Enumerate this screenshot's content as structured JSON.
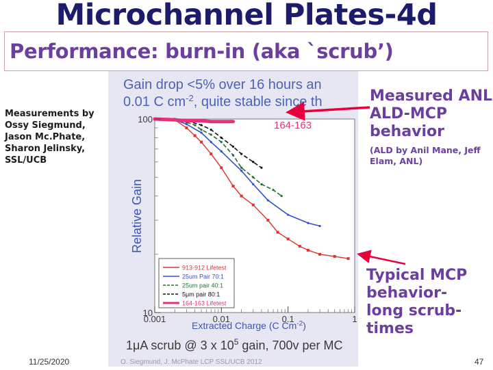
{
  "slide": {
    "title": "Microchannel Plates-4d",
    "subtitle": "Performance: burn-in (aka `scrub’)",
    "credits": [
      "Measurements by",
      "Ossy Siegmund,",
      "Jason Mc.Phate,",
      "Sharon Jelinsky,",
      "SSL/UCB"
    ],
    "date": "11/25/2020",
    "page": "47",
    "annotation_top": {
      "lines": [
        "Measured ANL",
        "ALD-MCP",
        "behavior"
      ],
      "detail": "(ALD by Anil Mane, Jeff Elam, ANL)"
    },
    "annotation_bottom": {
      "lines": [
        "Typical MCP",
        "behavior-",
        "long scrub-",
        "times"
      ]
    },
    "colors": {
      "title": "#1c1c6a",
      "accent": "#6b3fa0",
      "arrow": "#e8003c"
    }
  },
  "chart_data": {
    "type": "scatter",
    "header_line1": "Gain drop <5% over 16 hours an",
    "header_line2_pre": "0.01 C cm",
    "header_line2_sup": "-2",
    "header_line2_post": ", quite stable since th",
    "ylabel": "Relative Gain",
    "xlabel": "Extracted Charge (C Cm",
    "xlabel_sup": "-2",
    "xlabel_post": ")",
    "footnote_pre": "1μA scrub @ 3 x 10",
    "footnote_sup": "5",
    "footnote_post": " gain, 700v per MC",
    "credit_line": "O. Siegmund, J. McPhate LCP SSL/UCB 2012 ",
    "inline_label": "164-163",
    "xscale": "log",
    "xlim": [
      0.001,
      1
    ],
    "ylim": [
      10,
      100
    ],
    "x_ticks": [
      {
        "value": 0.001,
        "label": "0.001"
      },
      {
        "value": 0.01,
        "label": "0.01"
      },
      {
        "value": 0.1,
        "label": "0.1"
      },
      {
        "value": 1,
        "label": "1"
      }
    ],
    "y_ticks": [
      {
        "value": 100,
        "label": "100"
      },
      {
        "value": 10,
        "label": "10"
      }
    ],
    "legend_position": "bottom-left",
    "series": [
      {
        "name": "913-912 Lifetest",
        "color": "#e03030",
        "style": "markers",
        "points": [
          [
            0.001,
            100
          ],
          [
            0.002,
            99
          ],
          [
            0.003,
            90
          ],
          [
            0.004,
            82
          ],
          [
            0.005,
            76
          ],
          [
            0.007,
            66
          ],
          [
            0.01,
            56
          ],
          [
            0.015,
            45
          ],
          [
            0.02,
            40
          ],
          [
            0.03,
            36
          ],
          [
            0.05,
            30
          ],
          [
            0.07,
            26
          ],
          [
            0.1,
            24
          ],
          [
            0.15,
            22
          ],
          [
            0.2,
            21
          ],
          [
            0.3,
            20
          ],
          [
            0.5,
            19.5
          ],
          [
            0.8,
            19
          ]
        ]
      },
      {
        "name": "25um Pair 70:1",
        "color": "#3050c8",
        "style": "line",
        "points": [
          [
            0.001,
            100
          ],
          [
            0.002,
            99
          ],
          [
            0.003,
            94
          ],
          [
            0.005,
            85
          ],
          [
            0.007,
            76
          ],
          [
            0.01,
            68
          ],
          [
            0.02,
            54
          ],
          [
            0.03,
            46
          ],
          [
            0.05,
            38
          ],
          [
            0.1,
            32
          ],
          [
            0.2,
            29
          ],
          [
            0.3,
            28
          ]
        ]
      },
      {
        "name": "25um pair 40:1",
        "color": "#207030",
        "style": "dashed",
        "points": [
          [
            0.002,
            100
          ],
          [
            0.003,
            96
          ],
          [
            0.004,
            93
          ],
          [
            0.005,
            88
          ],
          [
            0.007,
            83
          ],
          [
            0.01,
            76
          ],
          [
            0.015,
            65
          ],
          [
            0.02,
            56
          ],
          [
            0.03,
            50
          ],
          [
            0.04,
            46
          ],
          [
            0.06,
            43
          ],
          [
            0.08,
            40
          ]
        ]
      },
      {
        "name": "5μm pair 80:1",
        "color": "#111111",
        "style": "dashed",
        "points": [
          [
            0.002,
            100
          ],
          [
            0.003,
            98
          ],
          [
            0.005,
            93
          ],
          [
            0.007,
            88
          ],
          [
            0.01,
            80
          ],
          [
            0.015,
            72
          ],
          [
            0.02,
            66
          ],
          [
            0.03,
            60
          ],
          [
            0.04,
            56
          ]
        ]
      },
      {
        "name": "164-163 Lifetest",
        "color": "#e8307a",
        "style": "thick",
        "points": [
          [
            0.001,
            100
          ],
          [
            0.002,
            99
          ],
          [
            0.003,
            98
          ],
          [
            0.005,
            98
          ],
          [
            0.007,
            97
          ],
          [
            0.01,
            97
          ],
          [
            0.015,
            97
          ]
        ]
      }
    ]
  }
}
